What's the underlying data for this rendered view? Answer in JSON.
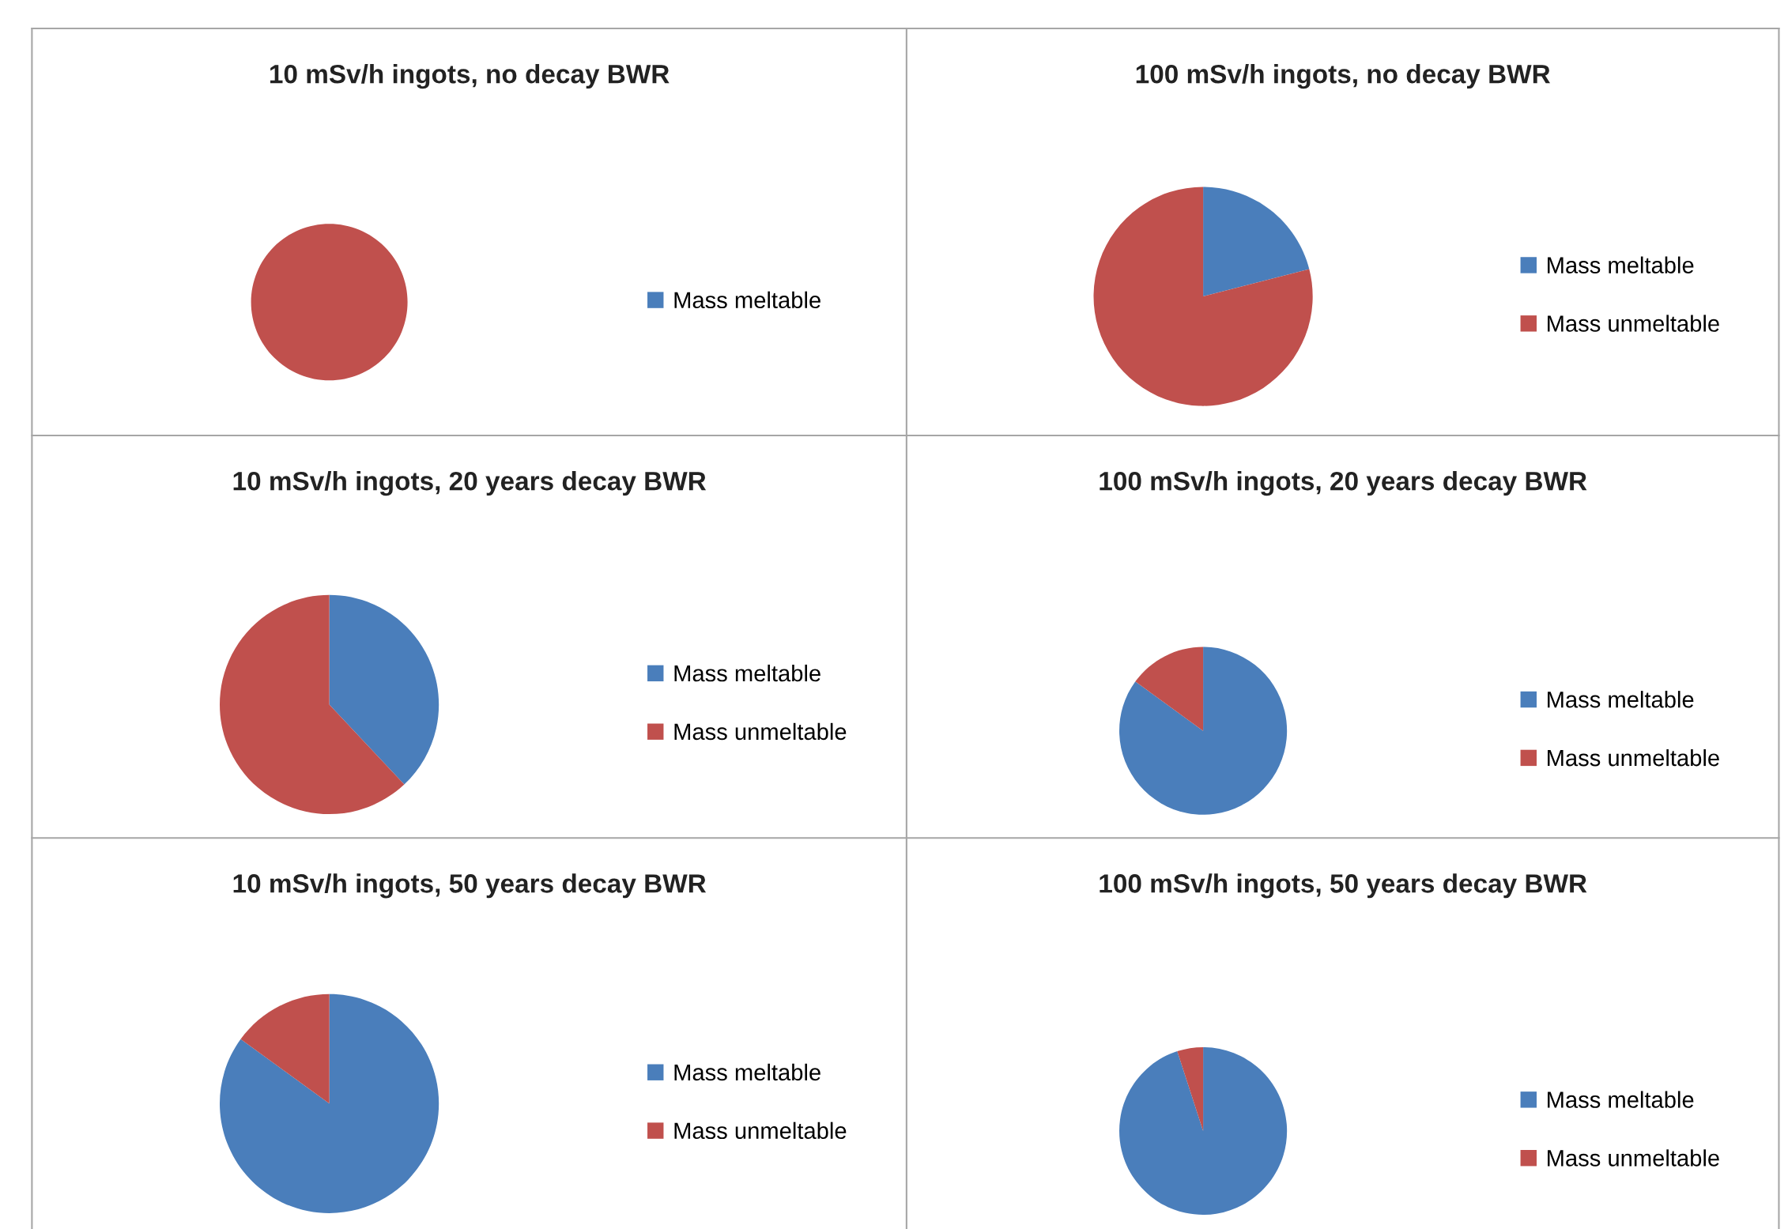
{
  "chart_data": [
    {
      "type": "pie",
      "title": "10 mSv/h ingots, no decay BWR",
      "categories": [
        "Mass meltable",
        null
      ],
      "values": [
        0,
        100
      ],
      "colors": [
        "#4a7ebb",
        "#c0504d"
      ],
      "legend": "right"
    },
    {
      "type": "pie",
      "title": "100 mSv/h ingots, no decay BWR",
      "categories": [
        "Mass meltable",
        "Mass unmeltable"
      ],
      "values": [
        21,
        79
      ],
      "colors": [
        "#4a7ebb",
        "#c0504d"
      ],
      "legend": "right"
    },
    {
      "type": "pie",
      "title": "10 mSv/h ingots, 20 years decay BWR",
      "categories": [
        "Mass meltable",
        "Mass unmeltable"
      ],
      "values": [
        38,
        62
      ],
      "colors": [
        "#4a7ebb",
        "#c0504d"
      ],
      "legend": "right"
    },
    {
      "type": "pie",
      "title": "100 mSv/h ingots, 20 years decay BWR",
      "categories": [
        "Mass meltable",
        "Mass unmeltable"
      ],
      "values": [
        85,
        15
      ],
      "colors": [
        "#4a7ebb",
        "#c0504d"
      ],
      "legend": "right"
    },
    {
      "type": "pie",
      "title": "10 mSv/h ingots, 50 years decay BWR",
      "categories": [
        "Mass meltable",
        "Mass unmeltable"
      ],
      "values": [
        85,
        15
      ],
      "colors": [
        "#4a7ebb",
        "#c0504d"
      ],
      "legend": "right"
    },
    {
      "type": "pie",
      "title": "100 mSv/h ingots, 50 years decay BWR",
      "categories": [
        "Mass meltable",
        "Mass unmeltable"
      ],
      "values": [
        95,
        5
      ],
      "colors": [
        "#4a7ebb",
        "#c0504d"
      ],
      "legend": "right"
    }
  ]
}
